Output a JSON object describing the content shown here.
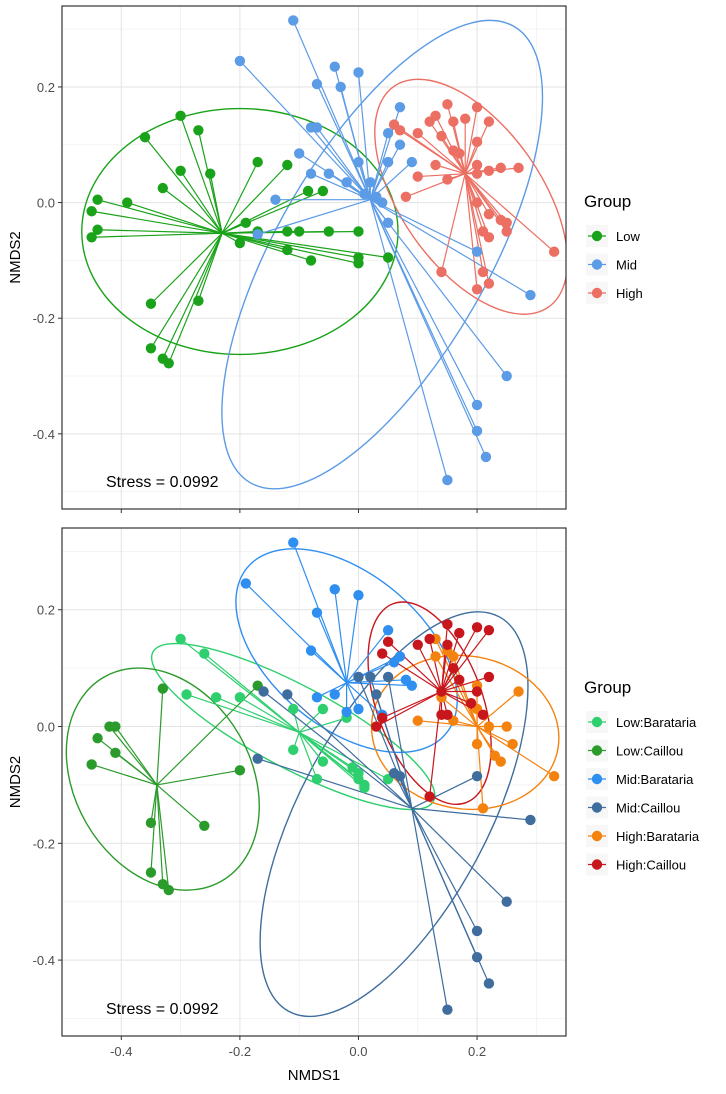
{
  "chart_data": [
    {
      "type": "scatter",
      "subtype": "nmds-ordination-with-spiders-and-ellipses",
      "title": "",
      "xlabel": "",
      "ylabel": "NMDS2",
      "xlim": [
        -0.5,
        0.35
      ],
      "ylim": [
        -0.53,
        0.34
      ],
      "xticks": [
        -0.4,
        -0.2,
        0.0,
        0.2
      ],
      "xtick_labels": [
        "",
        "",
        "",
        ""
      ],
      "yticks": [
        0.2,
        0.0,
        -0.2,
        -0.4
      ],
      "ytick_labels": [
        "0.2",
        "0.0",
        "-0.2",
        "-0.4"
      ],
      "annotation": "Stress = 0.0992",
      "legend_title": "Group",
      "legend_position": "right",
      "series": [
        {
          "name": "Low",
          "color": "#1aa31a",
          "centroid": [
            -0.23,
            -0.053
          ],
          "ellipse": {
            "cx": -0.2,
            "cy": -0.05,
            "rx": 0.27,
            "ry": 0.21,
            "angle": 0
          },
          "points": [
            [
              -0.3,
              0.15
            ],
            [
              -0.27,
              0.125
            ],
            [
              -0.36,
              0.113
            ],
            [
              -0.39,
              0.0
            ],
            [
              -0.44,
              0.005
            ],
            [
              -0.45,
              -0.015
            ],
            [
              -0.45,
              -0.06
            ],
            [
              -0.44,
              -0.047
            ],
            [
              -0.3,
              0.055
            ],
            [
              -0.25,
              0.05
            ],
            [
              -0.33,
              0.025
            ],
            [
              -0.17,
              0.07
            ],
            [
              -0.12,
              0.065
            ],
            [
              -0.085,
              0.02
            ],
            [
              -0.06,
              0.02
            ],
            [
              -0.19,
              -0.035
            ],
            [
              -0.17,
              -0.05
            ],
            [
              -0.12,
              -0.05
            ],
            [
              -0.1,
              -0.05
            ],
            [
              -0.05,
              -0.05
            ],
            [
              0.0,
              -0.05
            ],
            [
              -0.2,
              -0.07
            ],
            [
              -0.12,
              -0.082
            ],
            [
              -0.08,
              -0.1
            ],
            [
              0.0,
              -0.095
            ],
            [
              0.0,
              -0.105
            ],
            [
              0.05,
              -0.095
            ],
            [
              -0.35,
              -0.175
            ],
            [
              -0.27,
              -0.17
            ],
            [
              -0.35,
              -0.252
            ],
            [
              -0.33,
              -0.27
            ],
            [
              -0.32,
              -0.278
            ]
          ]
        },
        {
          "name": "Mid",
          "color": "#5c9be6",
          "centroid": [
            0.02,
            0.005
          ],
          "ellipse": {
            "cx": 0.04,
            "cy": -0.09,
            "rx": 0.45,
            "ry": 0.18,
            "angle": 60
          },
          "points": [
            [
              -0.11,
              0.315
            ],
            [
              -0.2,
              0.245
            ],
            [
              -0.04,
              0.235
            ],
            [
              -0.07,
              0.205
            ],
            [
              -0.03,
              0.2
            ],
            [
              0.0,
              0.225
            ],
            [
              0.07,
              0.165
            ],
            [
              -0.08,
              0.13
            ],
            [
              -0.07,
              0.13
            ],
            [
              0.05,
              0.12
            ],
            [
              0.07,
              0.1
            ],
            [
              0.09,
              0.07
            ],
            [
              -0.1,
              0.085
            ],
            [
              0.0,
              0.07
            ],
            [
              0.05,
              0.07
            ],
            [
              -0.08,
              0.05
            ],
            [
              -0.05,
              0.05
            ],
            [
              -0.02,
              0.035
            ],
            [
              0.02,
              0.035
            ],
            [
              0.01,
              0.015
            ],
            [
              0.03,
              0.01
            ],
            [
              0.04,
              0.0
            ],
            [
              -0.14,
              0.005
            ],
            [
              -0.17,
              -0.055
            ],
            [
              0.05,
              -0.035
            ],
            [
              0.2,
              -0.085
            ],
            [
              0.29,
              -0.16
            ],
            [
              0.25,
              -0.3
            ],
            [
              0.2,
              -0.35
            ],
            [
              0.2,
              -0.395
            ],
            [
              0.215,
              -0.44
            ],
            [
              0.15,
              -0.48
            ]
          ]
        },
        {
          "name": "High",
          "color": "#ec6f63",
          "centroid": [
            0.18,
            0.05
          ],
          "ellipse": {
            "cx": 0.19,
            "cy": 0.01,
            "rx": 0.23,
            "ry": 0.12,
            "angle": -55
          },
          "points": [
            [
              0.15,
              0.17
            ],
            [
              0.2,
              0.165
            ],
            [
              0.12,
              0.14
            ],
            [
              0.13,
              0.15
            ],
            [
              0.16,
              0.14
            ],
            [
              0.18,
              0.145
            ],
            [
              0.22,
              0.14
            ],
            [
              0.06,
              0.135
            ],
            [
              0.07,
              0.125
            ],
            [
              0.1,
              0.12
            ],
            [
              0.14,
              0.115
            ],
            [
              0.2,
              0.105
            ],
            [
              0.16,
              0.09
            ],
            [
              0.17,
              0.085
            ],
            [
              0.13,
              0.065
            ],
            [
              0.2,
              0.065
            ],
            [
              0.24,
              0.06
            ],
            [
              0.27,
              0.06
            ],
            [
              0.2,
              0.05
            ],
            [
              0.22,
              0.055
            ],
            [
              0.1,
              0.045
            ],
            [
              0.15,
              0.04
            ],
            [
              0.08,
              0.01
            ],
            [
              0.2,
              0.0
            ],
            [
              0.22,
              -0.02
            ],
            [
              0.24,
              -0.03
            ],
            [
              0.25,
              -0.035
            ],
            [
              0.21,
              -0.05
            ],
            [
              0.22,
              -0.06
            ],
            [
              0.25,
              -0.05
            ],
            [
              0.33,
              -0.085
            ],
            [
              0.14,
              -0.12
            ],
            [
              0.21,
              -0.12
            ],
            [
              0.22,
              -0.14
            ],
            [
              0.2,
              -0.15
            ]
          ]
        }
      ]
    },
    {
      "type": "scatter",
      "subtype": "nmds-ordination-with-spiders-and-ellipses",
      "title": "",
      "xlabel": "NMDS1",
      "ylabel": "NMDS2",
      "xlim": [
        -0.5,
        0.35
      ],
      "ylim": [
        -0.53,
        0.34
      ],
      "xticks": [
        -0.4,
        -0.2,
        0.0,
        0.2
      ],
      "xtick_labels": [
        "-0.4",
        "-0.2",
        "0.0",
        "0.2"
      ],
      "yticks": [
        0.2,
        0.0,
        -0.2,
        -0.4
      ],
      "ytick_labels": [
        "0.2",
        "0.0",
        "-0.2",
        "-0.4"
      ],
      "annotation": "Stress = 0.0992",
      "legend_title": "Group",
      "legend_position": "right",
      "series": [
        {
          "name": "Low:Barataria",
          "color": "#2ecf6e",
          "centroid": [
            -0.1,
            -0.01
          ],
          "ellipse": {
            "cx": -0.11,
            "cy": 0.0,
            "rx": 0.27,
            "ry": 0.07,
            "angle": -28
          },
          "points": [
            [
              -0.3,
              0.15
            ],
            [
              -0.26,
              0.125
            ],
            [
              -0.29,
              0.055
            ],
            [
              -0.24,
              0.05
            ],
            [
              -0.2,
              0.05
            ],
            [
              -0.11,
              0.03
            ],
            [
              -0.06,
              0.03
            ],
            [
              -0.02,
              0.015
            ],
            [
              -0.11,
              -0.04
            ],
            [
              -0.06,
              -0.06
            ],
            [
              -0.01,
              -0.07
            ],
            [
              0.0,
              -0.09
            ],
            [
              0.01,
              -0.1
            ],
            [
              0.01,
              -0.105
            ],
            [
              -0.07,
              -0.09
            ],
            [
              0.05,
              -0.09
            ],
            [
              0.0,
              -0.08
            ]
          ]
        },
        {
          "name": "Low:Caillou",
          "color": "#2b9b2b",
          "centroid": [
            -0.34,
            -0.1
          ],
          "ellipse": {
            "cx": -0.33,
            "cy": -0.09,
            "rx": 0.15,
            "ry": 0.2,
            "angle": 30
          },
          "points": [
            [
              -0.42,
              0.0
            ],
            [
              -0.44,
              -0.02
            ],
            [
              -0.45,
              -0.065
            ],
            [
              -0.41,
              -0.045
            ],
            [
              -0.41,
              0.0
            ],
            [
              -0.33,
              0.065
            ],
            [
              -0.2,
              -0.075
            ],
            [
              -0.17,
              0.07
            ],
            [
              -0.35,
              -0.165
            ],
            [
              -0.26,
              -0.17
            ],
            [
              -0.35,
              -0.25
            ],
            [
              -0.33,
              -0.27
            ],
            [
              -0.32,
              -0.28
            ]
          ]
        },
        {
          "name": "Mid:Barataria",
          "color": "#2f8ff0",
          "centroid": [
            -0.02,
            0.075
          ],
          "ellipse": {
            "cx": -0.02,
            "cy": 0.13,
            "rx": 0.22,
            "ry": 0.13,
            "angle": -40
          },
          "points": [
            [
              -0.11,
              0.315
            ],
            [
              -0.19,
              0.245
            ],
            [
              -0.04,
              0.235
            ],
            [
              -0.07,
              0.195
            ],
            [
              0.0,
              0.225
            ],
            [
              -0.08,
              0.13
            ],
            [
              0.05,
              0.165
            ],
            [
              0.07,
              0.12
            ],
            [
              0.06,
              0.11
            ],
            [
              0.09,
              0.07
            ],
            [
              0.08,
              0.08
            ],
            [
              -0.07,
              0.05
            ],
            [
              -0.04,
              0.055
            ],
            [
              0.0,
              0.03
            ],
            [
              -0.02,
              0.025
            ],
            [
              0.04,
              0.02
            ]
          ]
        },
        {
          "name": "Mid:Caillou",
          "color": "#3f6d9e",
          "centroid": [
            0.09,
            -0.14
          ],
          "ellipse": {
            "cx": 0.06,
            "cy": -0.15,
            "rx": 0.38,
            "ry": 0.16,
            "angle": 62
          },
          "points": [
            [
              0.0,
              0.085
            ],
            [
              0.05,
              0.085
            ],
            [
              0.03,
              0.055
            ],
            [
              -0.12,
              0.055
            ],
            [
              -0.16,
              0.06
            ],
            [
              -0.17,
              -0.055
            ],
            [
              0.06,
              -0.08
            ],
            [
              0.07,
              -0.085
            ],
            [
              0.2,
              -0.085
            ],
            [
              0.29,
              -0.16
            ],
            [
              0.25,
              -0.3
            ],
            [
              0.2,
              -0.35
            ],
            [
              0.2,
              -0.395
            ],
            [
              0.22,
              -0.44
            ],
            [
              0.15,
              -0.485
            ],
            [
              0.02,
              0.085
            ]
          ]
        },
        {
          "name": "High:Barataria",
          "color": "#f4820f",
          "centroid": [
            0.2,
            0.0
          ],
          "ellipse": {
            "cx": 0.18,
            "cy": -0.01,
            "rx": 0.16,
            "ry": 0.13,
            "angle": -10
          },
          "points": [
            [
              0.13,
              0.15
            ],
            [
              0.15,
              0.13
            ],
            [
              0.16,
              0.12
            ],
            [
              0.13,
              0.12
            ],
            [
              0.2,
              0.07
            ],
            [
              0.27,
              0.06
            ],
            [
              0.14,
              0.05
            ],
            [
              0.2,
              0.03
            ],
            [
              0.1,
              0.01
            ],
            [
              0.16,
              0.01
            ],
            [
              0.22,
              0.0
            ],
            [
              0.25,
              0.0
            ],
            [
              0.2,
              -0.03
            ],
            [
              0.23,
              -0.05
            ],
            [
              0.26,
              -0.03
            ],
            [
              0.24,
              -0.06
            ],
            [
              0.33,
              -0.085
            ],
            [
              0.21,
              -0.14
            ]
          ]
        },
        {
          "name": "High:Caillou",
          "color": "#c8161d",
          "centroid": [
            0.14,
            0.06
          ],
          "ellipse": {
            "cx": 0.12,
            "cy": 0.04,
            "rx": 0.18,
            "ry": 0.09,
            "angle": -70
          },
          "points": [
            [
              0.15,
              0.175
            ],
            [
              0.17,
              0.16
            ],
            [
              0.2,
              0.17
            ],
            [
              0.22,
              0.165
            ],
            [
              0.05,
              0.145
            ],
            [
              0.12,
              0.15
            ],
            [
              0.1,
              0.14
            ],
            [
              0.04,
              0.125
            ],
            [
              0.15,
              0.14
            ],
            [
              0.16,
              0.1
            ],
            [
              0.14,
              0.06
            ],
            [
              0.17,
              0.08
            ],
            [
              0.22,
              0.085
            ],
            [
              0.19,
              0.04
            ],
            [
              0.2,
              0.06
            ],
            [
              0.21,
              0.02
            ],
            [
              0.14,
              0.02
            ],
            [
              0.15,
              0.02
            ],
            [
              0.12,
              -0.12
            ],
            [
              0.04,
              0.015
            ],
            [
              0.03,
              0.0
            ]
          ]
        }
      ]
    }
  ]
}
